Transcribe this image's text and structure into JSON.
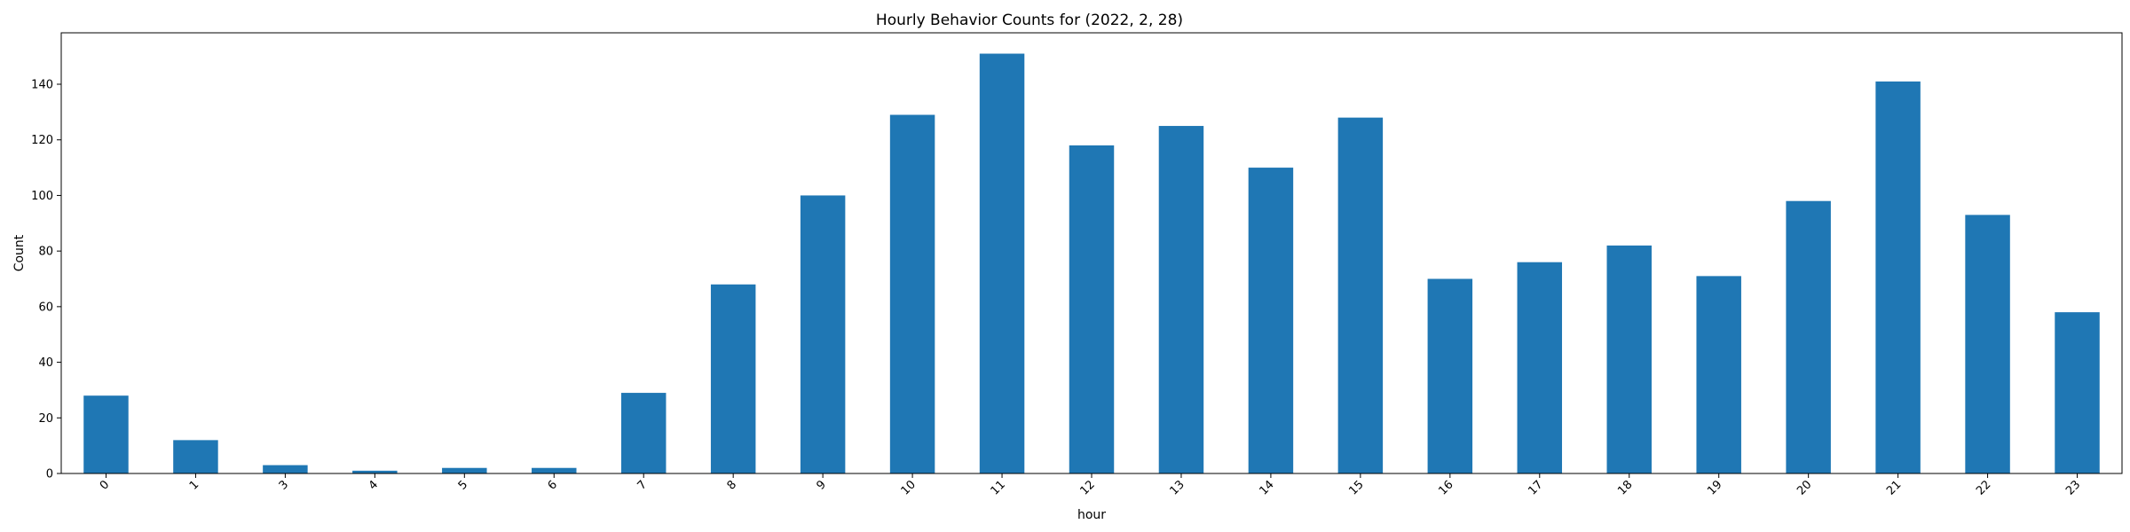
{
  "chart_data": {
    "type": "bar",
    "title": "Hourly Behavior Counts for (2022, 2, 28)",
    "xlabel": "hour",
    "ylabel": "Count",
    "categories": [
      "0",
      "1",
      "3",
      "4",
      "5",
      "6",
      "7",
      "8",
      "9",
      "10",
      "11",
      "12",
      "13",
      "14",
      "15",
      "16",
      "17",
      "18",
      "19",
      "20",
      "21",
      "22",
      "23"
    ],
    "values": [
      28,
      12,
      3,
      1,
      2,
      2,
      29,
      68,
      100,
      129,
      151,
      118,
      125,
      110,
      128,
      70,
      76,
      82,
      71,
      98,
      141,
      93,
      58
    ],
    "ylim": [
      0,
      158.5
    ],
    "yticks": [
      0,
      20,
      40,
      60,
      80,
      100,
      120,
      140
    ],
    "grid": false,
    "bar_color": "#1f77b4"
  }
}
